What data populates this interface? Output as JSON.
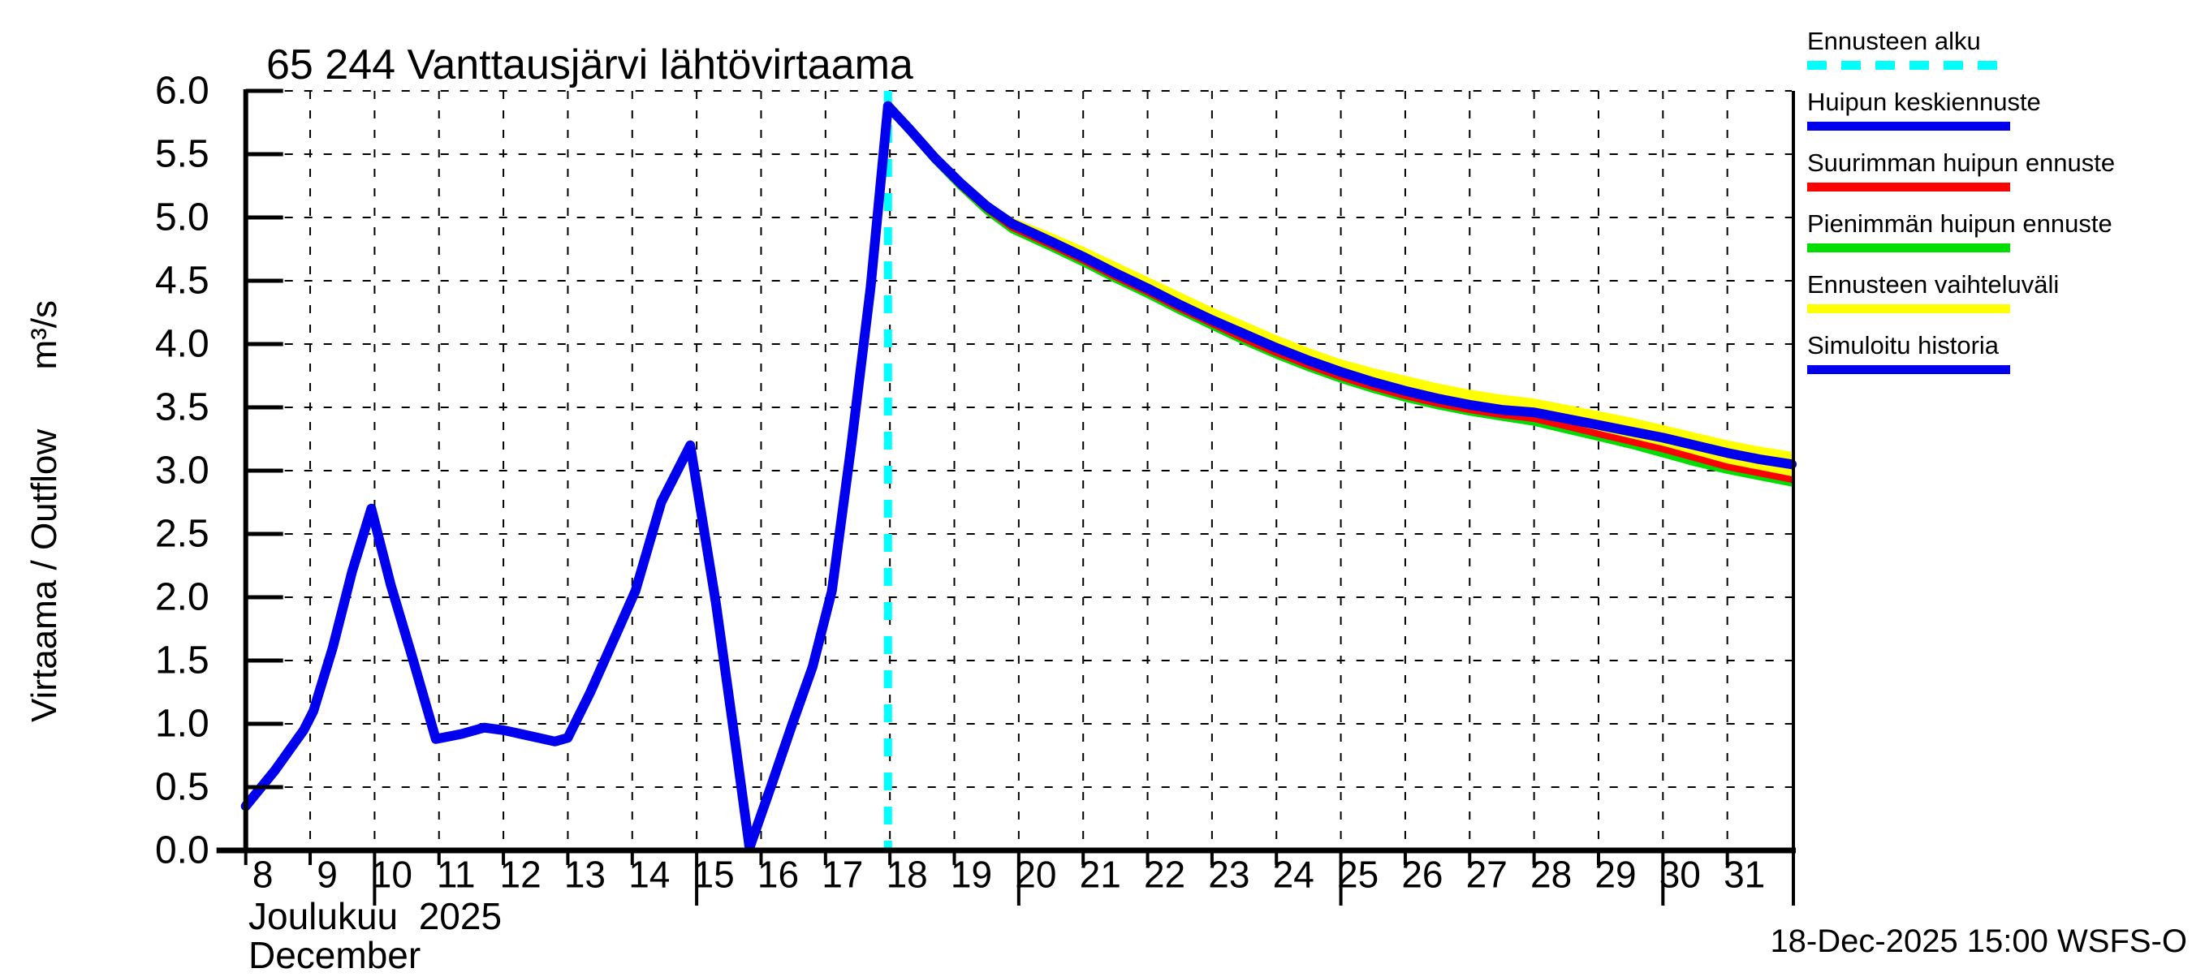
{
  "chart_data": {
    "type": "line",
    "title": "65 244 Vanttausjärvi lähtövirtaama",
    "ylabel": "Virtaama / Outflow      m³/s",
    "xlabel_month_fi": "Joulukuu  2025",
    "xlabel_month_en": "December",
    "timestamp": "18-Dec-2025 15:00 WSFS-O",
    "x_domain": [
      8,
      32
    ],
    "y_domain": [
      0,
      6
    ],
    "x_ticks": [
      "8",
      "9",
      "10",
      "11",
      "12",
      "13",
      "14",
      "15",
      "16",
      "17",
      "18",
      "19",
      "20",
      "21",
      "22",
      "23",
      "24",
      "25",
      "26",
      "27",
      "28",
      "29",
      "30",
      "31"
    ],
    "x_tick_days": [
      8,
      9,
      10,
      11,
      12,
      13,
      14,
      15,
      16,
      17,
      18,
      19,
      20,
      21,
      22,
      23,
      24,
      25,
      26,
      27,
      28,
      29,
      30,
      31
    ],
    "long_tick_days": [
      10,
      15,
      20,
      25,
      30,
      32
    ],
    "y_ticks": [
      "0.0",
      "0.5",
      "1.0",
      "1.5",
      "2.0",
      "2.5",
      "3.0",
      "3.5",
      "4.0",
      "4.5",
      "5.0",
      "5.5",
      "6.0"
    ],
    "y_tick_values": [
      0,
      0.5,
      1,
      1.5,
      2,
      2.5,
      3,
      3.5,
      4,
      4.5,
      5,
      5.5,
      6
    ],
    "grid": true,
    "forecast_start_day": 17.97,
    "colors": {
      "background": "#FFFFFF",
      "axis": "#000000",
      "history": "#0000EE",
      "median": "#0000EE",
      "max": "#FF0000",
      "min": "#00DD00",
      "band": "#FFFF00",
      "forecast_start": "#00FFFF"
    },
    "legend": [
      {
        "label": "Ennusteen alku",
        "color": "#00FFFF",
        "dashed": true
      },
      {
        "label": "Huipun keskiennuste",
        "color": "#0000EE",
        "dashed": false
      },
      {
        "label": "Suurimman huipun ennuste",
        "color": "#FF0000",
        "dashed": false
      },
      {
        "label": "Pienimmän huipun ennuste",
        "color": "#00DD00",
        "dashed": false
      },
      {
        "label": "Ennusteen vaihteluväli",
        "color": "#FFFF00",
        "dashed": false
      },
      {
        "label": "Simuloitu historia",
        "color": "#0000EE",
        "dashed": false
      }
    ],
    "series": [
      {
        "name": "Simuloitu historia",
        "role": "history",
        "color": "#0000EE",
        "width": 12,
        "points": [
          [
            8.0,
            0.35
          ],
          [
            8.45,
            0.63
          ],
          [
            8.9,
            0.95
          ],
          [
            9.05,
            1.1
          ],
          [
            9.35,
            1.6
          ],
          [
            9.65,
            2.2
          ],
          [
            9.95,
            2.7
          ],
          [
            10.25,
            2.1
          ],
          [
            10.6,
            1.5
          ],
          [
            10.95,
            0.88
          ],
          [
            11.35,
            0.92
          ],
          [
            11.7,
            0.97
          ],
          [
            12.0,
            0.95
          ],
          [
            12.45,
            0.9
          ],
          [
            12.8,
            0.86
          ],
          [
            13.0,
            0.89
          ],
          [
            13.35,
            1.25
          ],
          [
            13.7,
            1.65
          ],
          [
            14.05,
            2.05
          ],
          [
            14.45,
            2.75
          ],
          [
            14.9,
            3.2
          ],
          [
            15.3,
            1.95
          ],
          [
            15.6,
            0.85
          ],
          [
            15.82,
            0.02
          ],
          [
            16.15,
            0.5
          ],
          [
            16.5,
            1.02
          ],
          [
            16.8,
            1.45
          ],
          [
            17.1,
            2.05
          ],
          [
            17.4,
            3.2
          ],
          [
            17.7,
            4.45
          ],
          [
            17.97,
            5.88
          ]
        ]
      },
      {
        "name": "Huipun keskiennuste",
        "role": "median",
        "color": "#0000EE",
        "width": 12,
        "points": [
          [
            17.97,
            5.88
          ],
          [
            18.3,
            5.7
          ],
          [
            18.7,
            5.47
          ],
          [
            19.1,
            5.27
          ],
          [
            19.5,
            5.09
          ],
          [
            19.9,
            4.95
          ],
          [
            20.5,
            4.81
          ],
          [
            21,
            4.69
          ],
          [
            21.5,
            4.56
          ],
          [
            22,
            4.44
          ],
          [
            22.5,
            4.31
          ],
          [
            23,
            4.19
          ],
          [
            23.5,
            4.08
          ],
          [
            24,
            3.97
          ],
          [
            24.5,
            3.87
          ],
          [
            25,
            3.78
          ],
          [
            25.5,
            3.7
          ],
          [
            26,
            3.63
          ],
          [
            26.5,
            3.57
          ],
          [
            27,
            3.52
          ],
          [
            27.5,
            3.48
          ],
          [
            28,
            3.46
          ],
          [
            28.5,
            3.41
          ],
          [
            29,
            3.36
          ],
          [
            29.5,
            3.31
          ],
          [
            30,
            3.26
          ],
          [
            30.5,
            3.2
          ],
          [
            31,
            3.14
          ],
          [
            31.5,
            3.09
          ],
          [
            32,
            3.05
          ]
        ]
      },
      {
        "name": "Suurimman huipun ennuste",
        "role": "max",
        "color": "#FF0000",
        "width": 8,
        "points": [
          [
            17.97,
            5.88
          ],
          [
            18.3,
            5.69
          ],
          [
            18.7,
            5.46
          ],
          [
            19.1,
            5.25
          ],
          [
            19.5,
            5.07
          ],
          [
            19.9,
            4.92
          ],
          [
            20.5,
            4.78
          ],
          [
            21,
            4.66
          ],
          [
            21.5,
            4.53
          ],
          [
            22,
            4.41
          ],
          [
            22.5,
            4.28
          ],
          [
            23,
            4.16
          ],
          [
            23.5,
            4.04
          ],
          [
            24,
            3.93
          ],
          [
            24.5,
            3.83
          ],
          [
            25,
            3.74
          ],
          [
            25.5,
            3.66
          ],
          [
            26,
            3.59
          ],
          [
            26.5,
            3.53
          ],
          [
            27,
            3.48
          ],
          [
            27.5,
            3.44
          ],
          [
            28,
            3.41
          ],
          [
            28.5,
            3.35
          ],
          [
            29,
            3.29
          ],
          [
            29.5,
            3.23
          ],
          [
            30,
            3.17
          ],
          [
            30.5,
            3.1
          ],
          [
            31,
            3.03
          ],
          [
            31.5,
            2.98
          ],
          [
            32,
            2.93
          ]
        ]
      },
      {
        "name": "Pienimmän huipun ennuste",
        "role": "min",
        "color": "#00DD00",
        "width": 8,
        "points": [
          [
            17.97,
            5.87
          ],
          [
            18.3,
            5.68
          ],
          [
            18.7,
            5.45
          ],
          [
            19.1,
            5.24
          ],
          [
            19.5,
            5.05
          ],
          [
            19.9,
            4.9
          ],
          [
            20.5,
            4.76
          ],
          [
            21,
            4.64
          ],
          [
            21.5,
            4.51
          ],
          [
            22,
            4.39
          ],
          [
            22.5,
            4.26
          ],
          [
            23,
            4.14
          ],
          [
            23.5,
            4.02
          ],
          [
            24,
            3.91
          ],
          [
            24.5,
            3.81
          ],
          [
            25,
            3.72
          ],
          [
            25.5,
            3.64
          ],
          [
            26,
            3.57
          ],
          [
            26.5,
            3.51
          ],
          [
            27,
            3.46
          ],
          [
            27.5,
            3.42
          ],
          [
            28,
            3.38
          ],
          [
            28.5,
            3.32
          ],
          [
            29,
            3.26
          ],
          [
            29.5,
            3.2
          ],
          [
            30,
            3.13
          ],
          [
            30.5,
            3.06
          ],
          [
            31,
            3.0
          ],
          [
            31.5,
            2.95
          ],
          [
            32,
            2.9
          ]
        ]
      },
      {
        "name": "Ennusteen vaihteluväli",
        "role": "band",
        "color": "#FFFF00",
        "top": [
          [
            17.97,
            5.9
          ],
          [
            18.3,
            5.73
          ],
          [
            18.7,
            5.5
          ],
          [
            19.1,
            5.3
          ],
          [
            19.5,
            5.13
          ],
          [
            19.9,
            5.0
          ],
          [
            20.5,
            4.88
          ],
          [
            21,
            4.77
          ],
          [
            21.5,
            4.65
          ],
          [
            22,
            4.53
          ],
          [
            22.5,
            4.41
          ],
          [
            23,
            4.29
          ],
          [
            23.5,
            4.18
          ],
          [
            24,
            4.07
          ],
          [
            24.5,
            3.97
          ],
          [
            25,
            3.88
          ],
          [
            25.5,
            3.81
          ],
          [
            26,
            3.75
          ],
          [
            26.5,
            3.69
          ],
          [
            27,
            3.64
          ],
          [
            27.5,
            3.6
          ],
          [
            28,
            3.57
          ],
          [
            28.5,
            3.52
          ],
          [
            29,
            3.47
          ],
          [
            29.5,
            3.42
          ],
          [
            30,
            3.36
          ],
          [
            30.5,
            3.3
          ],
          [
            31,
            3.24
          ],
          [
            31.5,
            3.19
          ],
          [
            32,
            3.15
          ]
        ],
        "bottom": [
          [
            17.97,
            5.85
          ],
          [
            18.3,
            5.66
          ],
          [
            18.7,
            5.43
          ],
          [
            19.1,
            5.22
          ],
          [
            19.5,
            5.03
          ],
          [
            19.9,
            4.88
          ],
          [
            20.5,
            4.74
          ],
          [
            21,
            4.62
          ],
          [
            21.5,
            4.49
          ],
          [
            22,
            4.37
          ],
          [
            22.5,
            4.24
          ],
          [
            23,
            4.12
          ],
          [
            23.5,
            4.0
          ],
          [
            24,
            3.89
          ],
          [
            24.5,
            3.79
          ],
          [
            25,
            3.7
          ],
          [
            25.5,
            3.62
          ],
          [
            26,
            3.55
          ],
          [
            26.5,
            3.49
          ],
          [
            27,
            3.44
          ],
          [
            27.5,
            3.4
          ],
          [
            28,
            3.36
          ],
          [
            28.5,
            3.3
          ],
          [
            29,
            3.24
          ],
          [
            29.5,
            3.18
          ],
          [
            30,
            3.11
          ],
          [
            30.5,
            3.04
          ],
          [
            31,
            2.98
          ],
          [
            31.5,
            2.93
          ],
          [
            32,
            2.88
          ]
        ]
      }
    ]
  }
}
